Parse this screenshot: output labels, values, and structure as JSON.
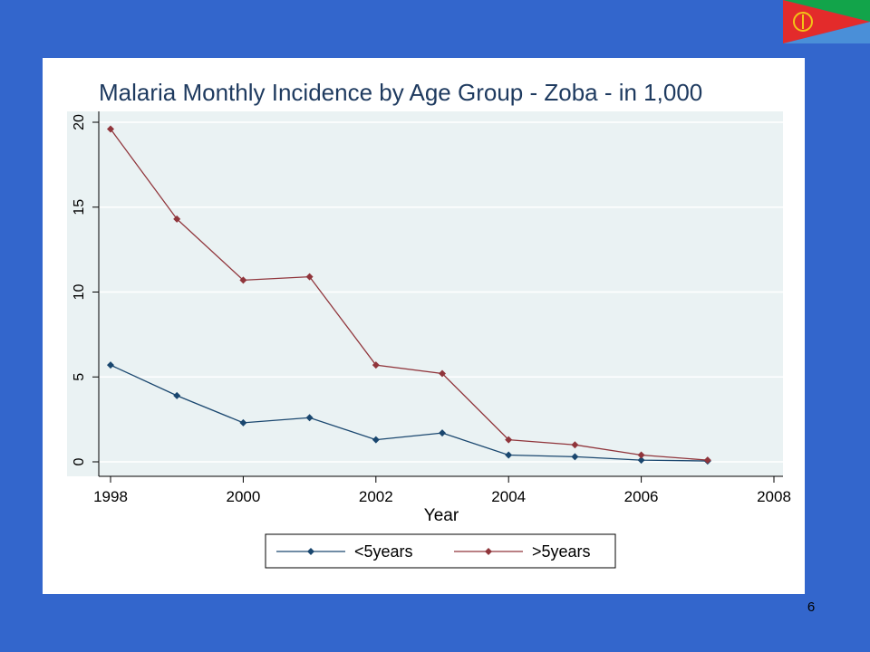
{
  "slide": {
    "number": "6"
  },
  "flag": {
    "icon": "eritrea-flag-icon",
    "colors": {
      "green": "#12a44a",
      "blue": "#4a8fd8",
      "red": "#e32b2b",
      "emblem": "#f3c316"
    }
  },
  "theme": {
    "background": "#3366cc",
    "plot_region": "#eaf2f3",
    "grid": "#ffffff",
    "series_under5": "#1a476f",
    "series_over5": "#90353b"
  },
  "chart_data": {
    "type": "line",
    "title": "Malaria Monthly Incidence by Age Group - Zoba - in 1,000",
    "xlabel": "Year",
    "ylabel": "",
    "xlim": [
      1998,
      2008
    ],
    "ylim": [
      0,
      20
    ],
    "x_ticks": [
      "1998",
      "2000",
      "2002",
      "2004",
      "2006",
      "2008"
    ],
    "y_ticks": [
      "0",
      "5",
      "10",
      "15",
      "20"
    ],
    "x": [
      1998,
      1999,
      2000,
      2001,
      2002,
      2003,
      2004,
      2005,
      2006,
      2007
    ],
    "series": [
      {
        "name": "<5years",
        "values": [
          5.7,
          3.9,
          2.3,
          2.6,
          1.3,
          1.7,
          0.4,
          0.3,
          0.1,
          0.05
        ]
      },
      {
        "name": ">5years",
        "values": [
          19.6,
          14.3,
          10.7,
          10.9,
          5.7,
          5.2,
          1.3,
          1.0,
          0.4,
          0.1
        ]
      }
    ],
    "legend_position": "bottom",
    "grid": true
  }
}
